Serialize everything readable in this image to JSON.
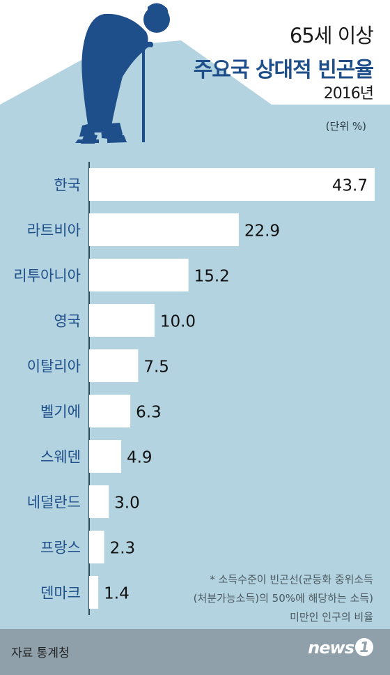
{
  "header": {
    "line1": "65세 이상",
    "line2": "주요국 상대적 빈곤율",
    "line3": "2016년"
  },
  "unit_label": "(단위 %)",
  "note": {
    "line1": "* 소득수준이 빈곤선(균등화 중위소득",
    "line2": "(처분가능소득)의 50%에 해당하는 소득)",
    "line3": "미만인 인구의 비율"
  },
  "source": "자료 통계청",
  "logo": {
    "text": "news",
    "mark": "1"
  },
  "colors": {
    "background": "#b2d3df",
    "bar": "#ffffff",
    "axis": "#2b4a5a",
    "silhouette": "#1f4f8a",
    "category_text": "#1f4f8a",
    "value_text": "#111111",
    "footer": "#8fa0aa"
  },
  "icons": [
    "elderly-person-with-cane-icon"
  ],
  "chart_data": {
    "type": "bar",
    "orientation": "horizontal",
    "categories": [
      "한국",
      "라트비아",
      "리투아니아",
      "영국",
      "이탈리아",
      "벨기에",
      "스웨덴",
      "네덜란드",
      "프랑스",
      "덴마크"
    ],
    "values": [
      43.7,
      22.9,
      15.2,
      10.0,
      7.5,
      6.3,
      4.9,
      3.0,
      2.3,
      1.4
    ],
    "value_labels": [
      "43.7",
      "22.9",
      "15.2",
      "10.0",
      "7.5",
      "6.3",
      "4.9",
      "3.0",
      "2.3",
      "1.4"
    ],
    "xlim": [
      0,
      43.7
    ],
    "grid": false,
    "legend": "none"
  }
}
